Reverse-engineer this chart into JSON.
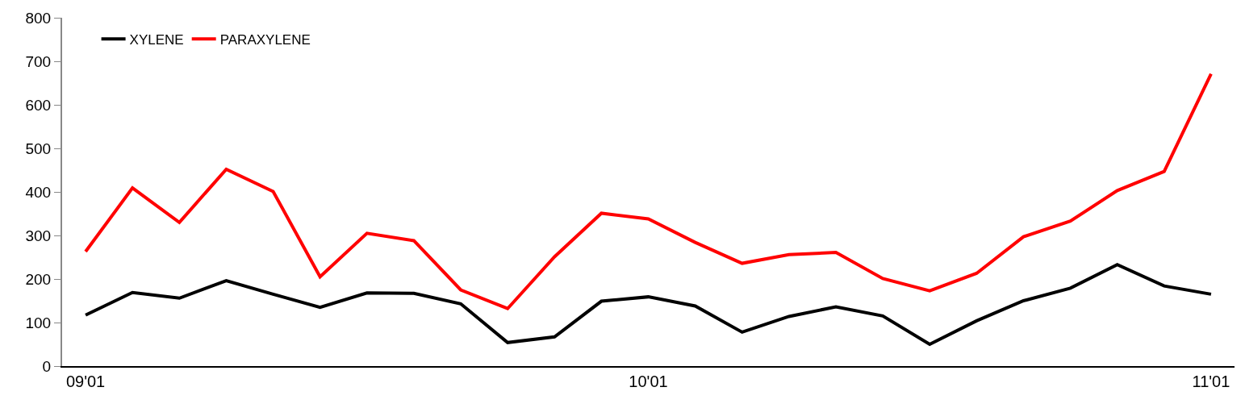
{
  "chart_data": {
    "type": "line",
    "categories": [
      "09'01",
      null,
      null,
      null,
      null,
      null,
      null,
      null,
      null,
      null,
      null,
      null,
      "10'01",
      null,
      null,
      null,
      null,
      null,
      null,
      null,
      null,
      null,
      null,
      null,
      "11'01"
    ],
    "series": [
      {
        "name": "XYLENE",
        "color": "#000000",
        "values": [
          117,
          169,
          156,
          196,
          165,
          135,
          168,
          167,
          143,
          54,
          67,
          149,
          159,
          138,
          78,
          114,
          136,
          115,
          50,
          104,
          150,
          179,
          233,
          184,
          165
        ]
      },
      {
        "name": "PARAXYLENE",
        "color": "#ff0000",
        "values": [
          263,
          409,
          330,
          452,
          401,
          205,
          305,
          288,
          175,
          132,
          251,
          351,
          338,
          284,
          236,
          256,
          261,
          201,
          173,
          213,
          297,
          333,
          403,
          447,
          671
        ]
      }
    ],
    "ylim": [
      0,
      800
    ],
    "yticks": [
      0,
      100,
      200,
      300,
      400,
      500,
      600,
      700,
      800
    ],
    "legend": "top left",
    "marker": "none",
    "line_style": "solid"
  }
}
